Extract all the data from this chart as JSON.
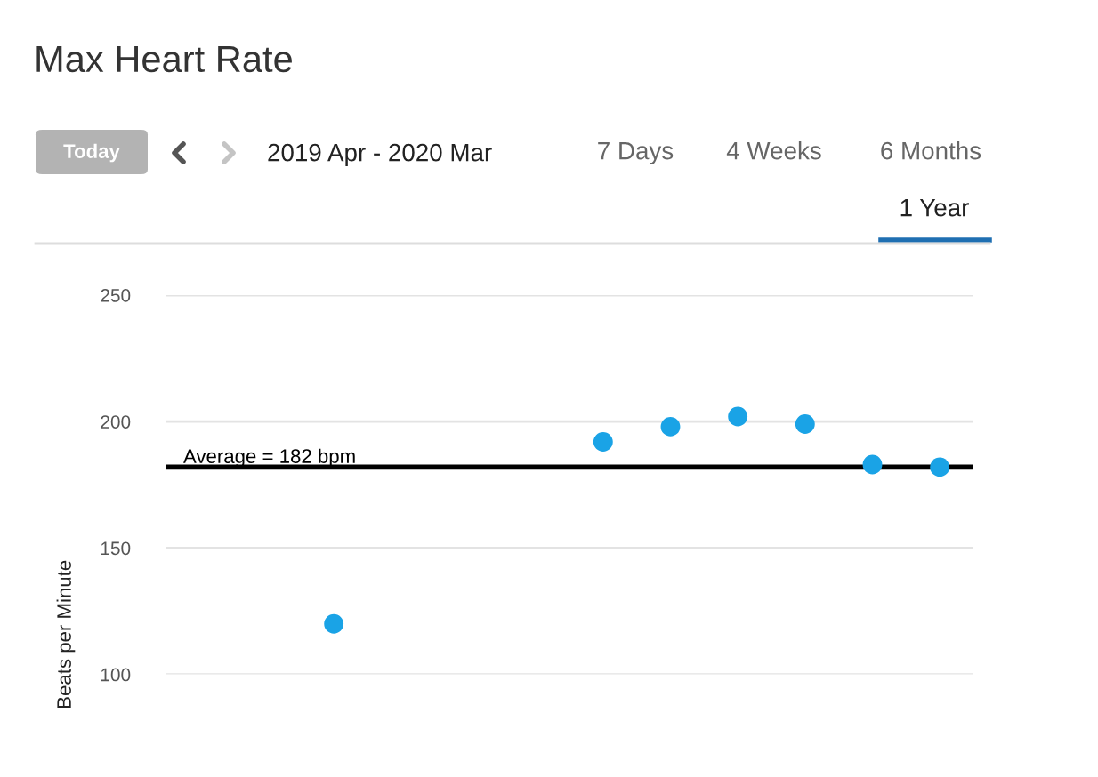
{
  "chart_data": {
    "type": "scatter",
    "title": "Max Heart Rate",
    "subtitle": "2019 Apr - 2020 Mar",
    "annotations": [
      "Today",
      "7 Days",
      "4 Weeks",
      "6 Months",
      "1 Year"
    ],
    "ylabel": "Beats per Minute",
    "categories": [
      null,
      null,
      null,
      null,
      null,
      null,
      null,
      null,
      null,
      null,
      null,
      null
    ],
    "values": [
      null,
      null,
      120,
      null,
      null,
      null,
      192,
      198,
      202,
      199,
      183,
      182
    ],
    "color": "#1aa3e6",
    "marker": "circle",
    "ylim": [
      100,
      250
    ],
    "yticks": [
      100,
      150,
      200,
      250
    ],
    "grid": "y",
    "tick_labels": "y",
    "ref_lines": [
      {
        "axis": "y",
        "value": 182,
        "label": "Average = 182 bpm",
        "color": "#000000",
        "line_style": "solid"
      }
    ]
  }
}
